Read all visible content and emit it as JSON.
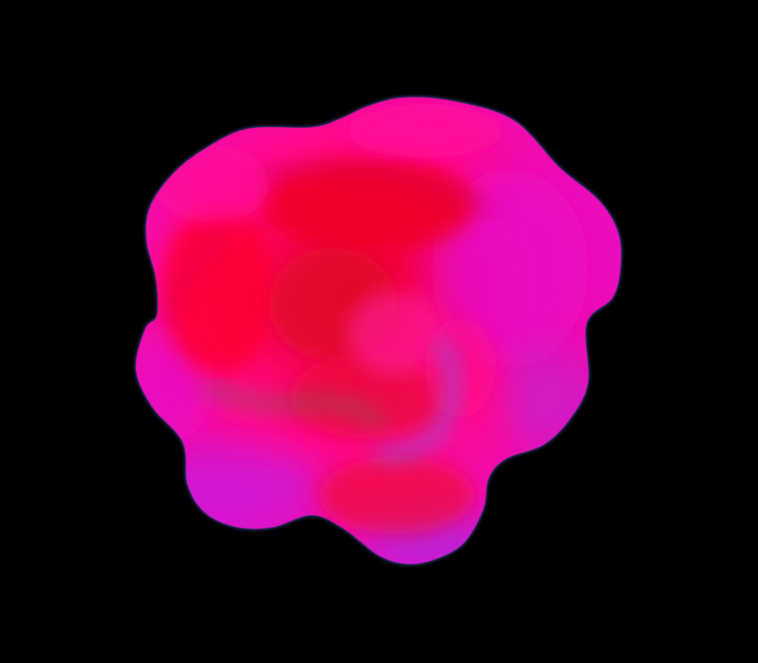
{
  "scene": {
    "subject": "rose-blossom",
    "background_color": "#000000",
    "palette": {
      "hot_pink": "#ff0a8c",
      "crimson": "#ee0022",
      "magenta": "#e30fd0",
      "violet": "#a52ee0",
      "blue_rim": "#6a6cf0",
      "olive_shade": "#6f6a52"
    }
  }
}
